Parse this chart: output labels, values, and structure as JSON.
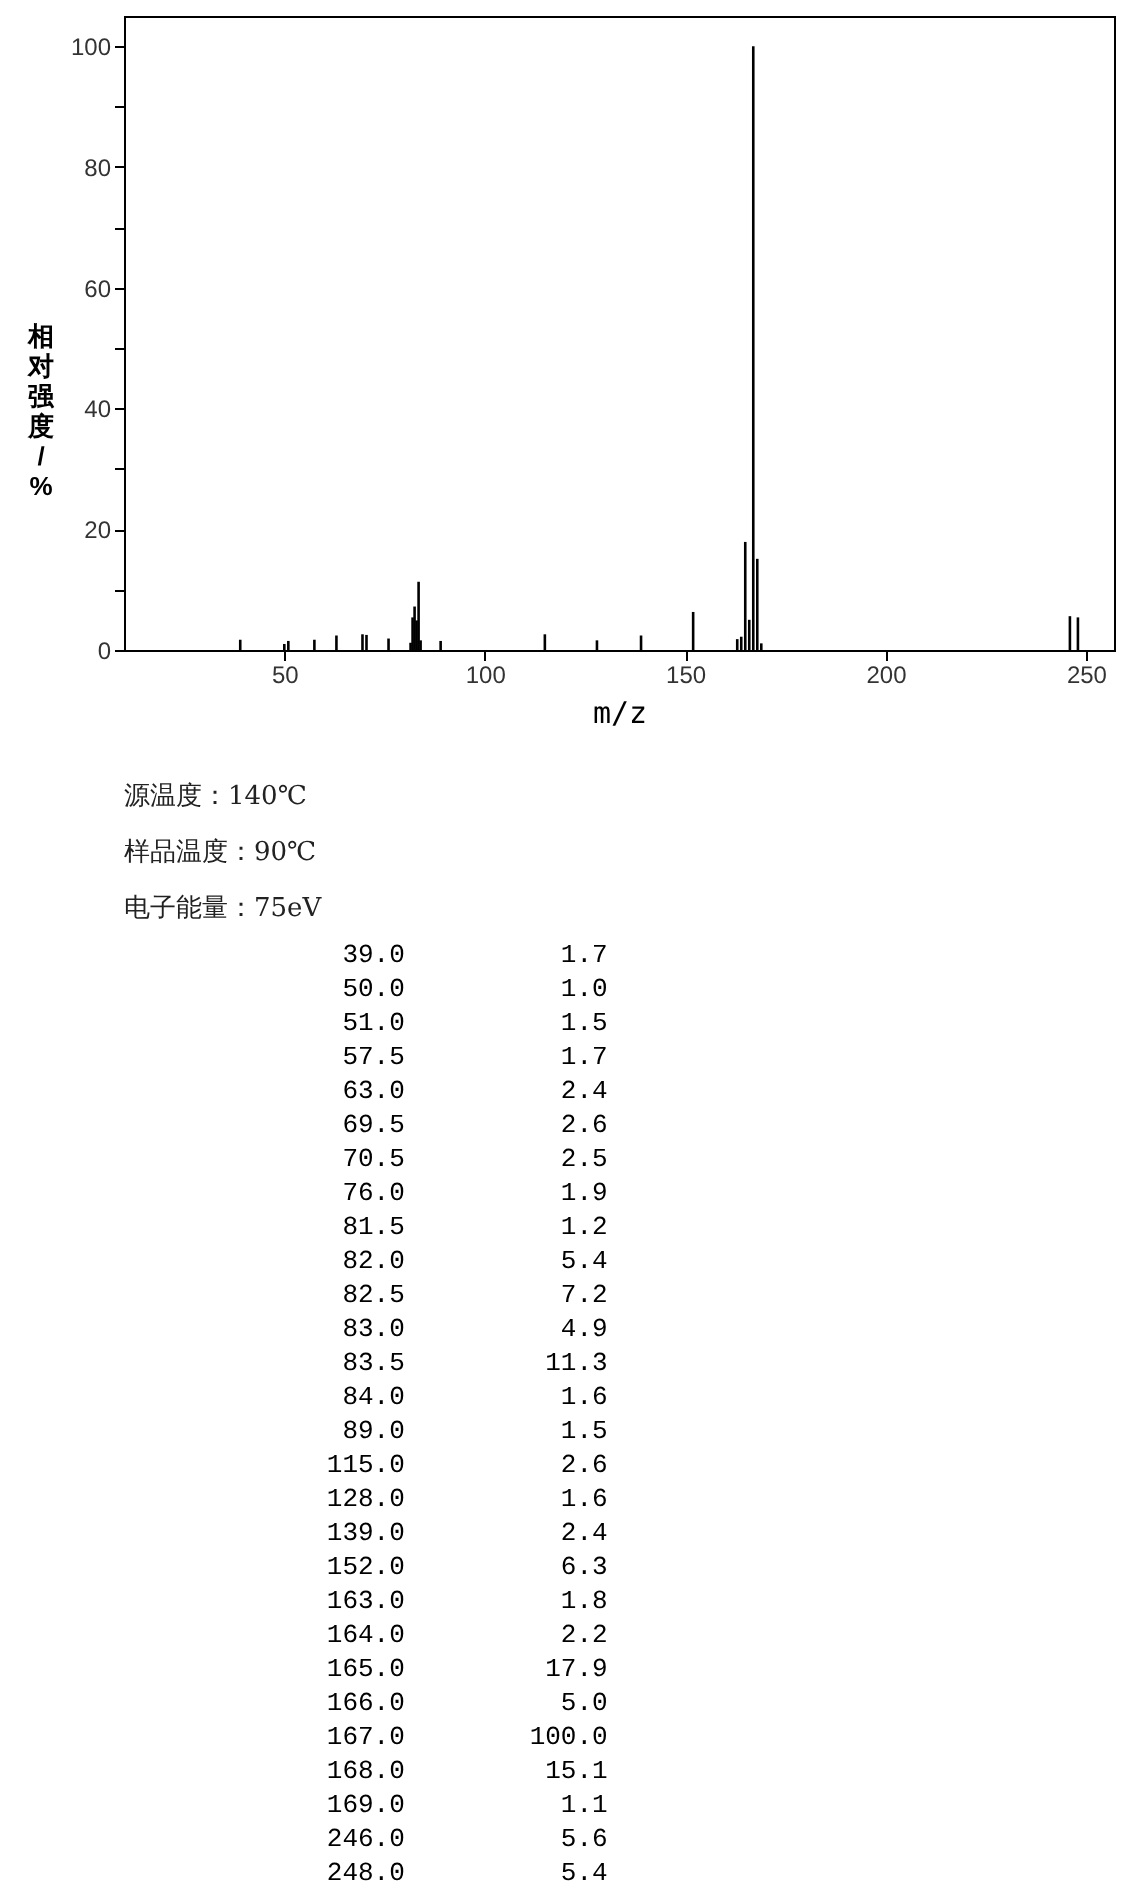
{
  "chart_data": {
    "type": "bar",
    "xlabel": "m/z",
    "ylabel": "相对强度/%",
    "color": "#000000",
    "grid": false,
    "xlim": [
      10,
      257
    ],
    "xticks": [
      50,
      100,
      150,
      200,
      250
    ],
    "ylim": [
      0,
      105
    ],
    "yticks": [
      0,
      {
        "value": 10,
        "label": null
      },
      20,
      {
        "value": 30,
        "label": null
      },
      40,
      {
        "value": 50,
        "label": null
      },
      60,
      {
        "value": 70,
        "label": null
      },
      80,
      {
        "value": 90,
        "label": null
      },
      100
    ],
    "x": [
      39.0,
      50.0,
      51.0,
      57.5,
      63.0,
      69.5,
      70.5,
      76.0,
      81.5,
      82.0,
      82.5,
      83.0,
      83.5,
      84.0,
      89.0,
      115.0,
      128.0,
      139.0,
      152.0,
      163.0,
      164.0,
      165.0,
      166.0,
      167.0,
      168.0,
      169.0,
      246.0,
      248.0
    ],
    "values": [
      1.7,
      1.0,
      1.5,
      1.7,
      2.4,
      2.6,
      2.5,
      1.9,
      1.2,
      5.4,
      7.2,
      4.9,
      11.3,
      1.6,
      1.5,
      2.6,
      1.6,
      2.4,
      6.3,
      1.8,
      2.2,
      17.9,
      5.0,
      100.0,
      15.1,
      1.1,
      5.6,
      5.4
    ],
    "annotations": [
      "源温度：140℃",
      "样品温度：90℃",
      "电子能量：75eV",
      "39.0 1.7",
      "50.0 1.0",
      "51.0 1.5",
      "57.5 1.7",
      "63.0 2.4",
      "69.5 2.6",
      "70.5 2.5",
      "76.0 1.9",
      "81.5 1.2",
      "82.0 5.4",
      "82.5 7.2",
      "83.0 4.9",
      "83.5 11.3",
      "84.0 1.6",
      "89.0 1.5",
      "115.0 2.6",
      "128.0 1.6",
      "139.0 2.4",
      "152.0 6.3",
      "163.0 1.8",
      "164.0 2.2",
      "165.0 17.9",
      "166.0 5.0",
      "167.0 100.0",
      "168.0 15.1",
      "169.0 1.1",
      "246.0 5.6",
      "248.0 5.4"
    ]
  }
}
